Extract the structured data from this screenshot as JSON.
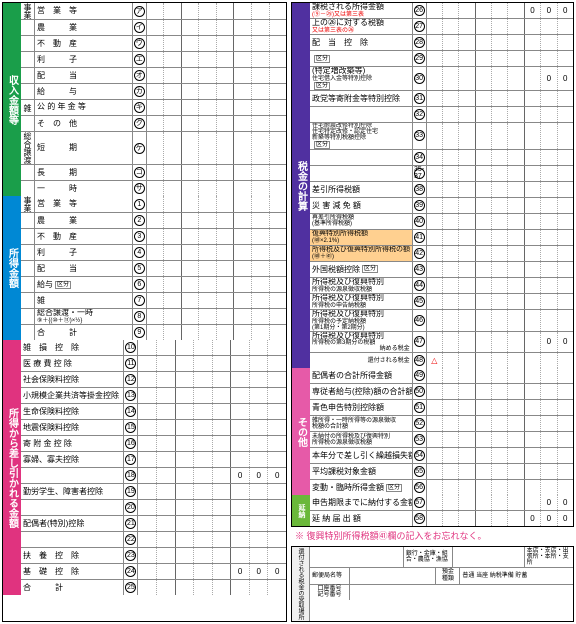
{
  "colors": {
    "green": "#1a9e4a",
    "blue": "#0088d4",
    "magenta": "#e0337f",
    "purple": "#5030a0",
    "pink": "#e65aa8",
    "lgreen": "#6ab83a",
    "orange": "#ffd090",
    "yellow": "#ffe680",
    "red": "#e00"
  },
  "left": {
    "section1": {
      "title": "収入金額等",
      "rows": [
        {
          "sub": "事業",
          "label": "営　業　等",
          "mark": "ア"
        },
        {
          "sub": "",
          "label": "農　　　業",
          "mark": "イ"
        },
        {
          "sub": "",
          "label": "不　動　産",
          "mark": "ウ"
        },
        {
          "sub": "",
          "label": "利　　　子",
          "mark": "エ"
        },
        {
          "sub": "",
          "label": "配　　　当",
          "mark": "オ"
        },
        {
          "sub": "",
          "label": "給　　　与",
          "mark": "カ"
        },
        {
          "sub": "雑",
          "label": "公 的 年 金 等",
          "mark": "キ"
        },
        {
          "sub": "",
          "label": "そ　の　他",
          "mark": "ク"
        },
        {
          "sub": "総合譲渡",
          "label": "短　　　期",
          "mark": "ケ"
        },
        {
          "sub": "",
          "label": "長　　　期",
          "mark": "コ"
        },
        {
          "sub": "",
          "label": "一　　　時",
          "mark": "サ"
        }
      ]
    },
    "section2": {
      "title": "所得金額",
      "rows": [
        {
          "sub": "事業",
          "label": "営　業　等",
          "mark": "1"
        },
        {
          "sub": "",
          "label": "農　　　業",
          "mark": "2"
        },
        {
          "sub": "",
          "label": "不　動　産",
          "mark": "3"
        },
        {
          "sub": "",
          "label": "利　　　子",
          "mark": "4"
        },
        {
          "sub": "",
          "label": "配　　　当",
          "mark": "5"
        },
        {
          "sub": "",
          "label": "給与",
          "mark": "6",
          "extra": "区分"
        },
        {
          "sub": "",
          "label": "雑",
          "mark": "7"
        },
        {
          "sub": "",
          "label": "総合譲渡・一時",
          "sub2": "⑨＋{(⑩＋⑪)×½}",
          "mark": "8"
        },
        {
          "sub": "",
          "label": "合　　　計",
          "mark": "9"
        }
      ]
    },
    "section3": {
      "title": "所得から差し引かれる金額",
      "rows": [
        {
          "label": "雑　損　控　除",
          "mark": "10"
        },
        {
          "label": "医 療 費 控 除",
          "mark": "11"
        },
        {
          "label": "社会保険料控除",
          "mark": "12"
        },
        {
          "label": "小規模企業共済等掛金控除",
          "mark": "13"
        },
        {
          "label": "生命保険料控除",
          "mark": "14"
        },
        {
          "label": "地震保険料控除",
          "mark": "15"
        },
        {
          "label": "寄 附 金 控 除",
          "mark": "16"
        },
        {
          "label": "寡婦、寡夫控除",
          "mark": "17"
        },
        {
          "label": "",
          "mark": "18",
          "zeros": true
        },
        {
          "label": "勤労学生、障害者控除",
          "mark": "19"
        },
        {
          "label": "",
          "mark": "20"
        },
        {
          "label": "配偶者(特別)控除",
          "mark": "21"
        },
        {
          "label": "",
          "mark": "22"
        },
        {
          "label": "扶　養　控　除",
          "mark": "23"
        },
        {
          "label": "基　礎　控　除",
          "mark": "24",
          "zeros": true
        },
        {
          "label": "合　　　計",
          "mark": "25"
        }
      ]
    }
  },
  "right": {
    "section1": {
      "title": "税金の計算",
      "rows": [
        {
          "label": "課税される所得金額",
          "sub": "(⑨－㉕)又は第三表",
          "mark": "26",
          "zeros": true,
          "redsub": true
        },
        {
          "label": "上の㉖に対する税額",
          "sub": "又は第三表の㉖",
          "mark": "27",
          "redsub": true
        },
        {
          "label": "配　当　控　除",
          "mark": "28"
        },
        {
          "label": "",
          "mark": "29",
          "extra": "区分"
        },
        {
          "label": "(特定増改築等)",
          "sub": "住宅借入金等特別控除",
          "mark": "30",
          "extra": "区分",
          "zerosPartial": true
        },
        {
          "label": "政党等寄附金等特別控除",
          "mark": "31"
        },
        {
          "label": "",
          "mark": "32",
          "small": true
        },
        {
          "label": "住宅耐震改修特別控除",
          "sub": "住宅特定改修・認定住宅",
          "sub3": "新築等特別税額控除",
          "mark": "33",
          "small": true,
          "extra": "区分"
        },
        {
          "label": "",
          "mark": "34",
          "small": true
        },
        {
          "label": "",
          "mark": "35-37",
          "small": true
        },
        {
          "label": "差引所得税額",
          "sub": "",
          "mark": "38"
        },
        {
          "label": "災 害 減 免 額",
          "mark": "39"
        },
        {
          "label": "再差引所得税額",
          "sub": "(基準所得税額)",
          "mark": "40",
          "small": true
        },
        {
          "label": "復興特別所得税額",
          "sub": "(㊵×2.1%)",
          "mark": "41",
          "hl": "orange"
        },
        {
          "label": "所得税及び復興特別所得税の額",
          "sub": "(㊵＋㊶)",
          "mark": "42",
          "hl": "orange"
        },
        {
          "label": "外国税額控除",
          "mark": "43",
          "extra": "区分"
        },
        {
          "label": "所得税及び復興特別",
          "sub": "所得税の源泉徴収税額",
          "mark": "44"
        },
        {
          "label": "所得税及び復興特別",
          "sub": "所得税の申告納税額",
          "mark": "45"
        },
        {
          "label": "所得税及び復興特別",
          "sub": "所得税の予定納税額",
          "sub3": "(第1期分・第2期分)",
          "mark": "46"
        },
        {
          "label": "所得税及び復興特別",
          "sub": "所得税の第3期分の税額",
          "side": "納める税金",
          "mark": "47",
          "zerosPartial": true
        },
        {
          "label": "",
          "side": "還付される税金",
          "mark": "48",
          "triangle": true
        }
      ]
    },
    "section2": {
      "title": "その他",
      "rows": [
        {
          "label": "配偶者の合計所得金額",
          "mark": "49"
        },
        {
          "label": "専従者給与(控除)額の合計額",
          "mark": "50"
        },
        {
          "label": "青色申告特別控除額",
          "mark": "51"
        },
        {
          "label": "雑所得・一時所得等の源泉徴収",
          "sub": "税額の合計額",
          "mark": "52",
          "small": true
        },
        {
          "label": "未納付の所得税及び復興特別",
          "sub": "所得税の源泉徴収税額",
          "mark": "53",
          "small": true
        },
        {
          "label": "本年分で差し引く繰越損失額",
          "mark": "54"
        },
        {
          "label": "平均課税対象金額",
          "mark": "55"
        },
        {
          "label": "変動・臨時所得金額",
          "mark": "56",
          "extra": "区分"
        }
      ]
    },
    "section3": {
      "title": "延納の届出",
      "short": "延納",
      "rows": [
        {
          "label": "申告期限までに納付する金額",
          "mark": "57",
          "zerosPartial": true
        },
        {
          "label": "延 納 届 出 額",
          "mark": "58",
          "zeros": true
        }
      ]
    },
    "note": "※ 復興特別所得税額㊶欄の記入をお忘れなく。",
    "footer": {
      "labels": {
        "l1": "還付される税金の受取場所",
        "l2": "郵便局名等",
        "l3": "銀行・金庫・組合・農協・漁協",
        "l4": "本店・支店・出張所・本所・支所",
        "l5": "預金",
        "l6": "種類",
        "l7": "普通 当座 納税準備 貯蓄",
        "l8": "口座番号",
        "l9": "記号番号"
      }
    }
  }
}
